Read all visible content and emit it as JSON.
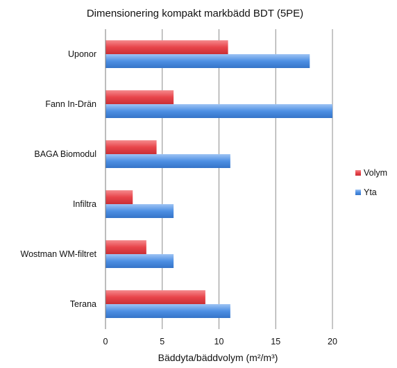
{
  "chart_data": {
    "type": "bar",
    "orientation": "horizontal",
    "title": "Dimensionering kompakt markbädd BDT (5PE)",
    "xlabel": "Bäddyta/bäddvolym (m²/m³)",
    "ylabel": "",
    "categories": [
      "Uponor",
      "Fann In-Drän",
      "BAGA Biomodul",
      "Infiltra",
      "Wostman WM-filtret",
      "Terana"
    ],
    "series": [
      {
        "name": "Volym",
        "color": "#e8454b",
        "values": [
          10.8,
          6.0,
          4.5,
          2.4,
          3.6,
          8.8
        ]
      },
      {
        "name": "Yta",
        "color": "#4d8fe3",
        "values": [
          18,
          20,
          11,
          6,
          6,
          11
        ]
      }
    ],
    "xlim": [
      0,
      20
    ],
    "xticks": [
      "0",
      "5",
      "10",
      "15",
      "20"
    ],
    "grid": "vertical",
    "legend": "right"
  }
}
